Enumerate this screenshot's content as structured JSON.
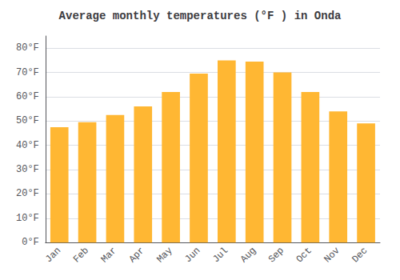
{
  "chart_data": {
    "type": "bar",
    "title": "Average monthly temperatures (°F ) in Onda",
    "categories": [
      "Jan",
      "Feb",
      "Mar",
      "Apr",
      "May",
      "Jun",
      "Jul",
      "Aug",
      "Sep",
      "Oct",
      "Nov",
      "Dec"
    ],
    "values": [
      47.5,
      49.5,
      52.5,
      56,
      62,
      69.5,
      75,
      74.5,
      70,
      62,
      54,
      49
    ],
    "color": "#FFB733",
    "ylim": [
      0,
      85
    ],
    "yticks": [
      {
        "value": 0,
        "label": "0°F"
      },
      {
        "value": 10,
        "label": "10°F"
      },
      {
        "value": 20,
        "label": "20°F"
      },
      {
        "value": 30,
        "label": "30°F"
      },
      {
        "value": 40,
        "label": "40°F"
      },
      {
        "value": 50,
        "label": "50°F"
      },
      {
        "value": 60,
        "label": "60°F"
      },
      {
        "value": 70,
        "label": "70°F"
      },
      {
        "value": 80,
        "label": "80°F"
      }
    ],
    "grid": true
  }
}
